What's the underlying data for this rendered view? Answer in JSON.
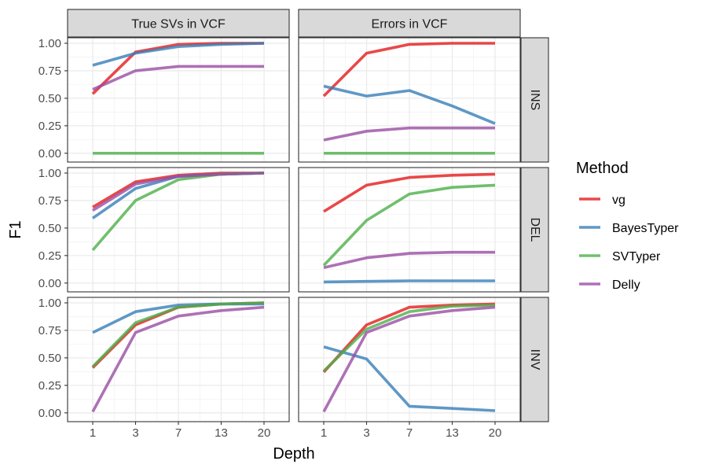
{
  "chart_data": {
    "type": "line",
    "x": [
      "1",
      "3",
      "7",
      "13",
      "20"
    ],
    "xlabel": "Depth",
    "ylabel": "F1",
    "ylim": [
      -0.08,
      1.05
    ],
    "yticks": [
      "0.00",
      "0.25",
      "0.50",
      "0.75",
      "1.00"
    ],
    "grid": true,
    "facet_columns": [
      "True SVs in VCF",
      "Errors in VCF"
    ],
    "facet_rows": [
      "INS",
      "DEL",
      "INV"
    ],
    "legend": {
      "title": "Method",
      "position": "right",
      "entries": [
        "vg",
        "BayesTyper",
        "SVTyper",
        "Delly"
      ]
    },
    "colors": {
      "vg": "#E41A1C",
      "BayesTyper": "#377EB8",
      "SVTyper": "#4DAF4A",
      "Delly": "#984EA3"
    },
    "panels": [
      {
        "column": "True SVs in VCF",
        "row": "INS",
        "series": [
          {
            "name": "vg",
            "values": [
              0.54,
              0.92,
              0.99,
              1.0,
              1.0
            ]
          },
          {
            "name": "BayesTyper",
            "values": [
              0.8,
              0.91,
              0.97,
              0.99,
              1.0
            ]
          },
          {
            "name": "SVTyper",
            "values": [
              0.0,
              0.0,
              0.0,
              0.0,
              0.0
            ]
          },
          {
            "name": "Delly",
            "values": [
              0.58,
              0.75,
              0.79,
              0.79,
              0.79
            ]
          }
        ]
      },
      {
        "column": "Errors in VCF",
        "row": "INS",
        "series": [
          {
            "name": "vg",
            "values": [
              0.52,
              0.91,
              0.99,
              1.0,
              1.0
            ]
          },
          {
            "name": "BayesTyper",
            "values": [
              0.61,
              0.52,
              0.57,
              0.43,
              0.27
            ]
          },
          {
            "name": "SVTyper",
            "values": [
              0.0,
              0.0,
              0.0,
              0.0,
              0.0
            ]
          },
          {
            "name": "Delly",
            "values": [
              0.12,
              0.2,
              0.23,
              0.23,
              0.23
            ]
          }
        ]
      },
      {
        "column": "True SVs in VCF",
        "row": "DEL",
        "series": [
          {
            "name": "vg",
            "values": [
              0.69,
              0.92,
              0.98,
              1.0,
              1.0
            ]
          },
          {
            "name": "BayesTyper",
            "values": [
              0.59,
              0.86,
              0.97,
              0.99,
              1.0
            ]
          },
          {
            "name": "SVTyper",
            "values": [
              0.3,
              0.75,
              0.94,
              0.99,
              1.0
            ]
          },
          {
            "name": "Delly",
            "values": [
              0.66,
              0.9,
              0.97,
              0.99,
              1.0
            ]
          }
        ]
      },
      {
        "column": "Errors in VCF",
        "row": "DEL",
        "series": [
          {
            "name": "vg",
            "values": [
              0.65,
              0.89,
              0.96,
              0.98,
              0.99
            ]
          },
          {
            "name": "BayesTyper",
            "values": [
              0.01,
              0.015,
              0.02,
              0.02,
              0.02
            ]
          },
          {
            "name": "SVTyper",
            "values": [
              0.16,
              0.57,
              0.81,
              0.87,
              0.89
            ]
          },
          {
            "name": "Delly",
            "values": [
              0.14,
              0.23,
              0.27,
              0.28,
              0.28
            ]
          }
        ]
      },
      {
        "column": "True SVs in VCF",
        "row": "INV",
        "series": [
          {
            "name": "vg",
            "values": [
              0.41,
              0.8,
              0.96,
              0.99,
              1.0
            ]
          },
          {
            "name": "BayesTyper",
            "values": [
              0.73,
              0.92,
              0.98,
              0.99,
              0.99
            ]
          },
          {
            "name": "SVTyper",
            "values": [
              0.42,
              0.82,
              0.96,
              0.99,
              1.0
            ]
          },
          {
            "name": "Delly",
            "values": [
              0.01,
              0.73,
              0.88,
              0.93,
              0.96
            ]
          }
        ]
      },
      {
        "column": "Errors in VCF",
        "row": "INV",
        "series": [
          {
            "name": "vg",
            "values": [
              0.37,
              0.8,
              0.96,
              0.98,
              0.99
            ]
          },
          {
            "name": "BayesTyper",
            "values": [
              0.6,
              0.49,
              0.06,
              0.04,
              0.02
            ]
          },
          {
            "name": "SVTyper",
            "values": [
              0.38,
              0.76,
              0.92,
              0.97,
              0.98
            ]
          },
          {
            "name": "Delly",
            "values": [
              0.01,
              0.73,
              0.88,
              0.93,
              0.96
            ]
          }
        ]
      }
    ]
  }
}
